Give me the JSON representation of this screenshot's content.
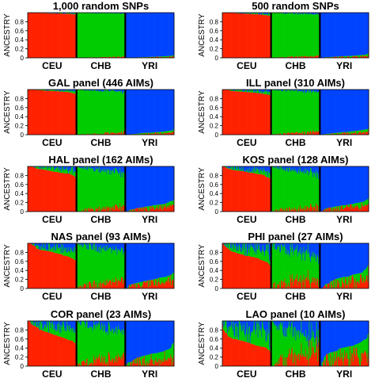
{
  "figure": {
    "ylabel": "ANCESTRY",
    "yticks": [
      "0",
      "0.2",
      "0.4",
      "0.6",
      "0.8"
    ],
    "colors": {
      "CEU": "#ff2200",
      "CHB": "#00cc00",
      "YRI": "#0044ff",
      "divider": "#000000"
    }
  },
  "chart_data": [
    {
      "type": "bar",
      "stacked": true,
      "title": "1,000 random SNPs",
      "ylabel": "ANCESTRY",
      "ylim": [
        0,
        1
      ],
      "categories": [
        "CEU",
        "CHB",
        "YRI"
      ],
      "series": [
        {
          "name": "CEU",
          "mean_ancestry": [
            0.99,
            0.01,
            0.01
          ]
        },
        {
          "name": "CHB",
          "mean_ancestry": [
            0.005,
            0.985,
            0.01
          ]
        },
        {
          "name": "YRI",
          "mean_ancestry": [
            0.005,
            0.005,
            0.98
          ]
        }
      ],
      "noise": 0.02
    },
    {
      "type": "bar",
      "stacked": true,
      "title": "500 random SNPs",
      "ylabel": "ANCESTRY",
      "ylim": [
        0,
        1
      ],
      "categories": [
        "CEU",
        "CHB",
        "YRI"
      ],
      "series": [
        {
          "name": "CEU",
          "mean_ancestry": [
            0.98,
            0.02,
            0.02
          ]
        },
        {
          "name": "CHB",
          "mean_ancestry": [
            0.01,
            0.97,
            0.02
          ]
        },
        {
          "name": "YRI",
          "mean_ancestry": [
            0.01,
            0.01,
            0.96
          ]
        }
      ],
      "noise": 0.03
    },
    {
      "type": "bar",
      "stacked": true,
      "title": "GAL panel (446 AIMs)",
      "ylabel": "ANCESTRY",
      "ylim": [
        0,
        1
      ],
      "categories": [
        "CEU",
        "CHB",
        "YRI"
      ],
      "series": [
        {
          "name": "CEU",
          "mean_ancestry": [
            0.97,
            0.02,
            0.02
          ]
        },
        {
          "name": "CHB",
          "mean_ancestry": [
            0.02,
            0.96,
            0.02
          ]
        },
        {
          "name": "YRI",
          "mean_ancestry": [
            0.01,
            0.02,
            0.96
          ]
        }
      ],
      "noise": 0.04
    },
    {
      "type": "bar",
      "stacked": true,
      "title": "ILL panel (310 AIMs)",
      "ylabel": "ANCESTRY",
      "ylim": [
        0,
        1
      ],
      "categories": [
        "CEU",
        "CHB",
        "YRI"
      ],
      "series": [
        {
          "name": "CEU",
          "mean_ancestry": [
            0.95,
            0.03,
            0.03
          ]
        },
        {
          "name": "CHB",
          "mean_ancestry": [
            0.03,
            0.94,
            0.03
          ]
        },
        {
          "name": "YRI",
          "mean_ancestry": [
            0.02,
            0.03,
            0.94
          ]
        }
      ],
      "noise": 0.05
    },
    {
      "type": "bar",
      "stacked": true,
      "title": "HAL panel (162 AIMs)",
      "ylabel": "ANCESTRY",
      "ylim": [
        0,
        1
      ],
      "categories": [
        "CEU",
        "CHB",
        "YRI"
      ],
      "series": [
        {
          "name": "CEU",
          "mean_ancestry": [
            0.9,
            0.05,
            0.07
          ]
        },
        {
          "name": "CHB",
          "mean_ancestry": [
            0.06,
            0.88,
            0.05
          ]
        },
        {
          "name": "YRI",
          "mean_ancestry": [
            0.04,
            0.07,
            0.88
          ]
        }
      ],
      "noise": 0.1
    },
    {
      "type": "bar",
      "stacked": true,
      "title": "KOS panel (128 AIMs)",
      "ylabel": "ANCESTRY",
      "ylim": [
        0,
        1
      ],
      "categories": [
        "CEU",
        "CHB",
        "YRI"
      ],
      "series": [
        {
          "name": "CEU",
          "mean_ancestry": [
            0.88,
            0.06,
            0.08
          ]
        },
        {
          "name": "CHB",
          "mean_ancestry": [
            0.06,
            0.86,
            0.06
          ]
        },
        {
          "name": "YRI",
          "mean_ancestry": [
            0.06,
            0.08,
            0.86
          ]
        }
      ],
      "noise": 0.11
    },
    {
      "type": "bar",
      "stacked": true,
      "title": "NAS panel (93 AIMs)",
      "ylabel": "ANCESTRY",
      "ylim": [
        0,
        1
      ],
      "categories": [
        "CEU",
        "CHB",
        "YRI"
      ],
      "series": [
        {
          "name": "CEU",
          "mean_ancestry": [
            0.82,
            0.1,
            0.1
          ]
        },
        {
          "name": "CHB",
          "mean_ancestry": [
            0.1,
            0.8,
            0.08
          ]
        },
        {
          "name": "YRI",
          "mean_ancestry": [
            0.08,
            0.1,
            0.82
          ]
        }
      ],
      "noise": 0.15
    },
    {
      "type": "bar",
      "stacked": true,
      "title": "PHI panel (27 AIMs)",
      "ylabel": "ANCESTRY",
      "ylim": [
        0,
        1
      ],
      "categories": [
        "CEU",
        "CHB",
        "YRI"
      ],
      "series": [
        {
          "name": "CEU",
          "mean_ancestry": [
            0.72,
            0.15,
            0.12
          ]
        },
        {
          "name": "CHB",
          "mean_ancestry": [
            0.18,
            0.7,
            0.12
          ]
        },
        {
          "name": "YRI",
          "mean_ancestry": [
            0.1,
            0.15,
            0.76
          ]
        }
      ],
      "noise": 0.22
    },
    {
      "type": "bar",
      "stacked": true,
      "title": "COR panel (23 AIMs)",
      "ylabel": "ANCESTRY",
      "ylim": [
        0,
        1
      ],
      "categories": [
        "CEU",
        "CHB",
        "YRI"
      ],
      "series": [
        {
          "name": "CEU",
          "mean_ancestry": [
            0.72,
            0.12,
            0.12
          ]
        },
        {
          "name": "CHB",
          "mean_ancestry": [
            0.18,
            0.72,
            0.12
          ]
        },
        {
          "name": "YRI",
          "mean_ancestry": [
            0.1,
            0.16,
            0.76
          ]
        }
      ],
      "noise": 0.22
    },
    {
      "type": "bar",
      "stacked": true,
      "title": "LAO panel (10 AIMs)",
      "ylabel": "ANCESTRY",
      "ylim": [
        0,
        1
      ],
      "categories": [
        "CEU",
        "CHB",
        "YRI"
      ],
      "series": [
        {
          "name": "CEU",
          "mean_ancestry": [
            0.55,
            0.22,
            0.2
          ]
        },
        {
          "name": "CHB",
          "mean_ancestry": [
            0.28,
            0.55,
            0.2
          ]
        },
        {
          "name": "YRI",
          "mean_ancestry": [
            0.17,
            0.23,
            0.6
          ]
        }
      ],
      "noise": 0.3
    }
  ]
}
